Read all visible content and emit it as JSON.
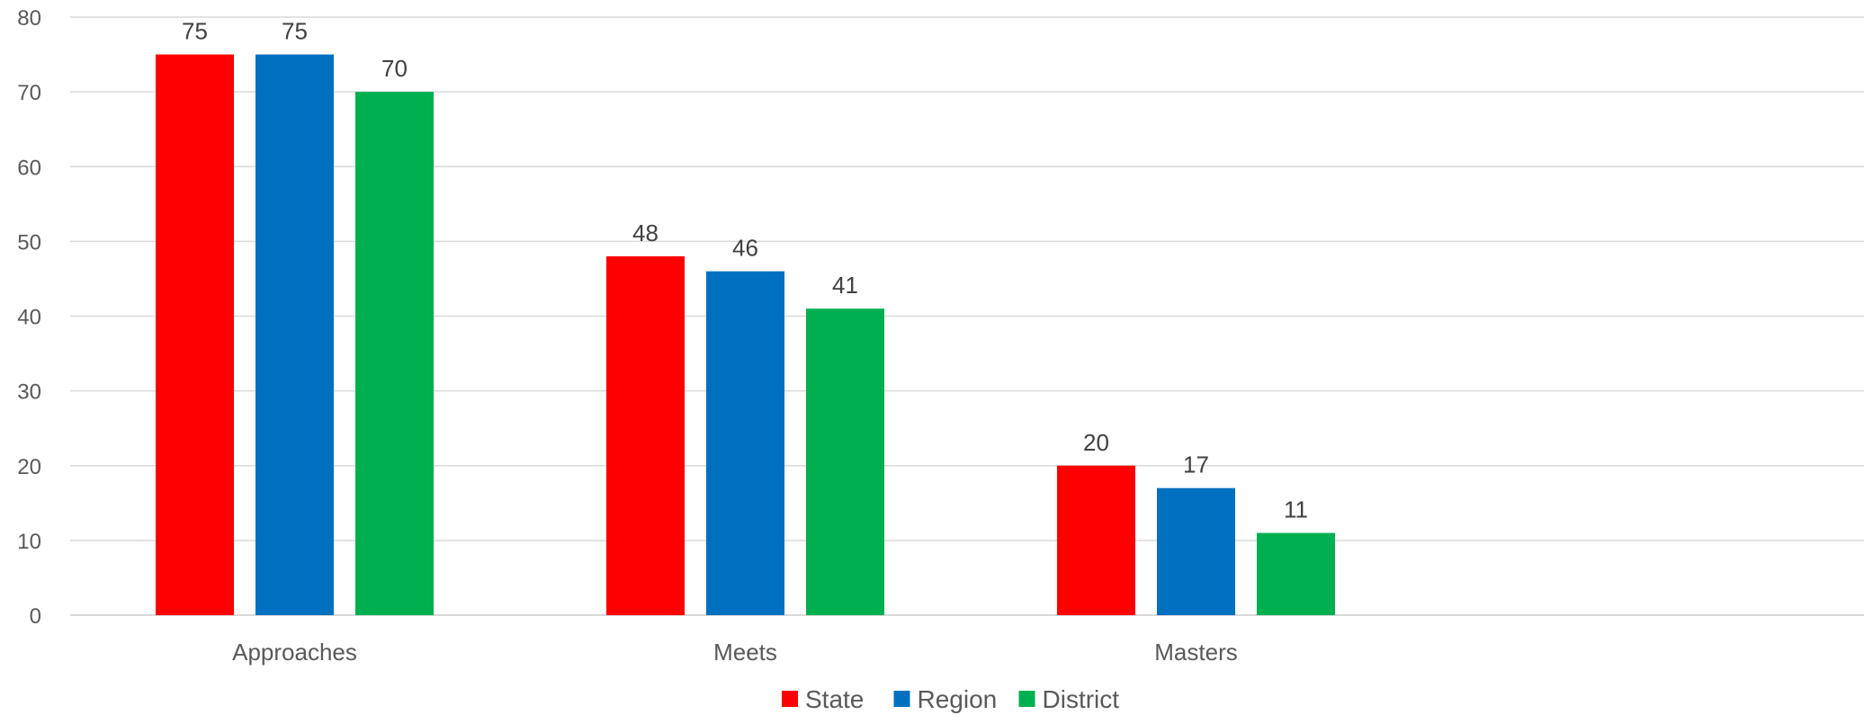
{
  "chart_data": {
    "type": "bar",
    "title": "",
    "xlabel": "",
    "ylabel": "",
    "categories": [
      "Approaches",
      "Meets",
      "Masters"
    ],
    "series": [
      {
        "name": "State",
        "values": [
          75,
          48,
          20
        ],
        "color": "#ff0000"
      },
      {
        "name": "Region",
        "values": [
          75,
          46,
          17
        ],
        "color": "#0070c0"
      },
      {
        "name": "District",
        "values": [
          70,
          41,
          11
        ],
        "color": "#00b050"
      }
    ],
    "ylim": [
      0,
      80
    ],
    "yticks": [
      0,
      10,
      20,
      30,
      40,
      50,
      60,
      70,
      80
    ],
    "grid": true,
    "legend": "bottom-center",
    "data_labels": true
  }
}
